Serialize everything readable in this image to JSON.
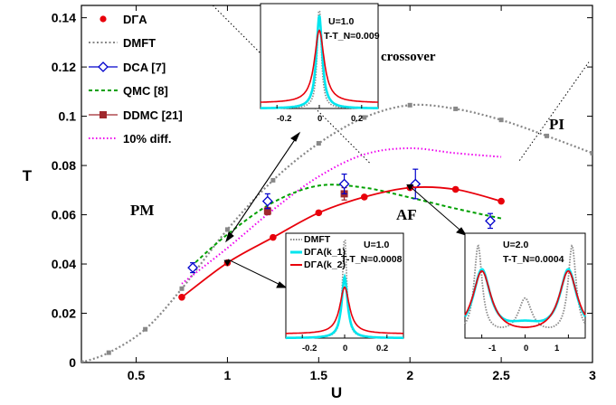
{
  "chart_data": {
    "type": "line",
    "xlabel": "U",
    "ylabel": "T",
    "xlim": [
      0.2,
      3.0
    ],
    "ylim": [
      0,
      0.145
    ],
    "xticks": [
      "0.5",
      "1",
      "1.5",
      "2",
      "2.5",
      "3"
    ],
    "xtick_values": [
      0.5,
      1,
      1.5,
      2,
      2.5,
      3
    ],
    "yticks": [
      "0",
      "0.02",
      "0.04",
      "0.06",
      "0.08",
      "0.1",
      "0.12",
      "0.14"
    ],
    "ytick_values": [
      0,
      0.02,
      0.04,
      0.06,
      0.08,
      0.1,
      0.12,
      0.14
    ],
    "legend_position": "top-left",
    "series": [
      {
        "name": "DΓA",
        "color": "#e8000b",
        "style": "solid-line-circles",
        "x": [
          0.75,
          1.0,
          1.25,
          1.5,
          1.75,
          2.0,
          2.25,
          2.5
        ],
        "y": [
          0.0265,
          0.0405,
          0.0508,
          0.0608,
          0.0672,
          0.071,
          0.0703,
          0.0655
        ]
      },
      {
        "name": "DMFT",
        "color": "#888888",
        "style": "dotted-squares",
        "x": [
          0.2,
          0.35,
          0.55,
          0.75,
          1.0,
          1.25,
          1.5,
          1.75,
          2.0,
          2.25,
          2.5,
          2.75,
          3.0
        ],
        "y": [
          0.0,
          0.004,
          0.0135,
          0.03,
          0.054,
          0.074,
          0.089,
          0.0995,
          0.1045,
          0.103,
          0.0985,
          0.092,
          0.085
        ]
      },
      {
        "name": "DCA [7]",
        "color": "#0000cc",
        "style": "diamonds-errorbars",
        "x": [
          0.81,
          1.22,
          1.64,
          2.03,
          2.44
        ],
        "y": [
          0.0385,
          0.0655,
          0.0725,
          0.0725,
          0.0575
        ],
        "yerr": [
          0.002,
          0.003,
          0.004,
          0.006,
          0.003
        ]
      },
      {
        "name": "QMC [8]",
        "color": "#00a000",
        "style": "dashed",
        "x": [
          0.8,
          1.0,
          1.25,
          1.5,
          1.75,
          2.0,
          2.25,
          2.5
        ],
        "y": [
          0.039,
          0.052,
          0.065,
          0.0718,
          0.071,
          0.067,
          0.0625,
          0.0585
        ]
      },
      {
        "name": "DDMC [21]",
        "color": "#a0282d",
        "style": "squares-errorbars",
        "x": [
          1.22,
          1.64
        ],
        "y": [
          0.0615,
          0.0685
        ],
        "yerr": [
          0.0015,
          0.0025
        ]
      },
      {
        "name": "10% diff.",
        "color": "#ee00ee",
        "style": "dotted",
        "x": [
          0.75,
          1.0,
          1.25,
          1.5,
          1.75,
          2.0,
          2.25,
          2.5
        ],
        "y": [
          0.032,
          0.0465,
          0.062,
          0.0755,
          0.0845,
          0.087,
          0.085,
          0.0835
        ]
      }
    ],
    "boundary_lines": [
      {
        "x": [
          0.92,
          1.78
        ],
        "y": [
          0.145,
          0.081
        ]
      },
      {
        "x": [
          2.6,
          2.98
        ],
        "y": [
          0.082,
          0.122
        ]
      }
    ],
    "region_labels": [
      "PM",
      "AF",
      "PI",
      "crossover"
    ],
    "insets": [
      {
        "label_lines": [
          "U=1.0",
          "T-T_N=0.009"
        ],
        "xticks": [
          "-0.2",
          "0",
          "0.2"
        ],
        "curves": [
          "dotted-gray",
          "cyan",
          "red"
        ]
      },
      {
        "label_lines": [
          "U=1.0",
          "T-T_N=0.0008"
        ],
        "legend": [
          "DMFT",
          "DΓA(k_1)",
          "DΓA(k_2)"
        ],
        "xticks": [
          "-0.2",
          "0",
          "0.2"
        ],
        "curves": [
          "dotted-gray",
          "cyan",
          "red"
        ]
      },
      {
        "label_lines": [
          "U=2.0",
          "T-T_N=0.0004"
        ],
        "xticks": [
          "-1",
          "0",
          "1"
        ],
        "curves": [
          "dotted-gray",
          "cyan",
          "red"
        ]
      }
    ]
  }
}
